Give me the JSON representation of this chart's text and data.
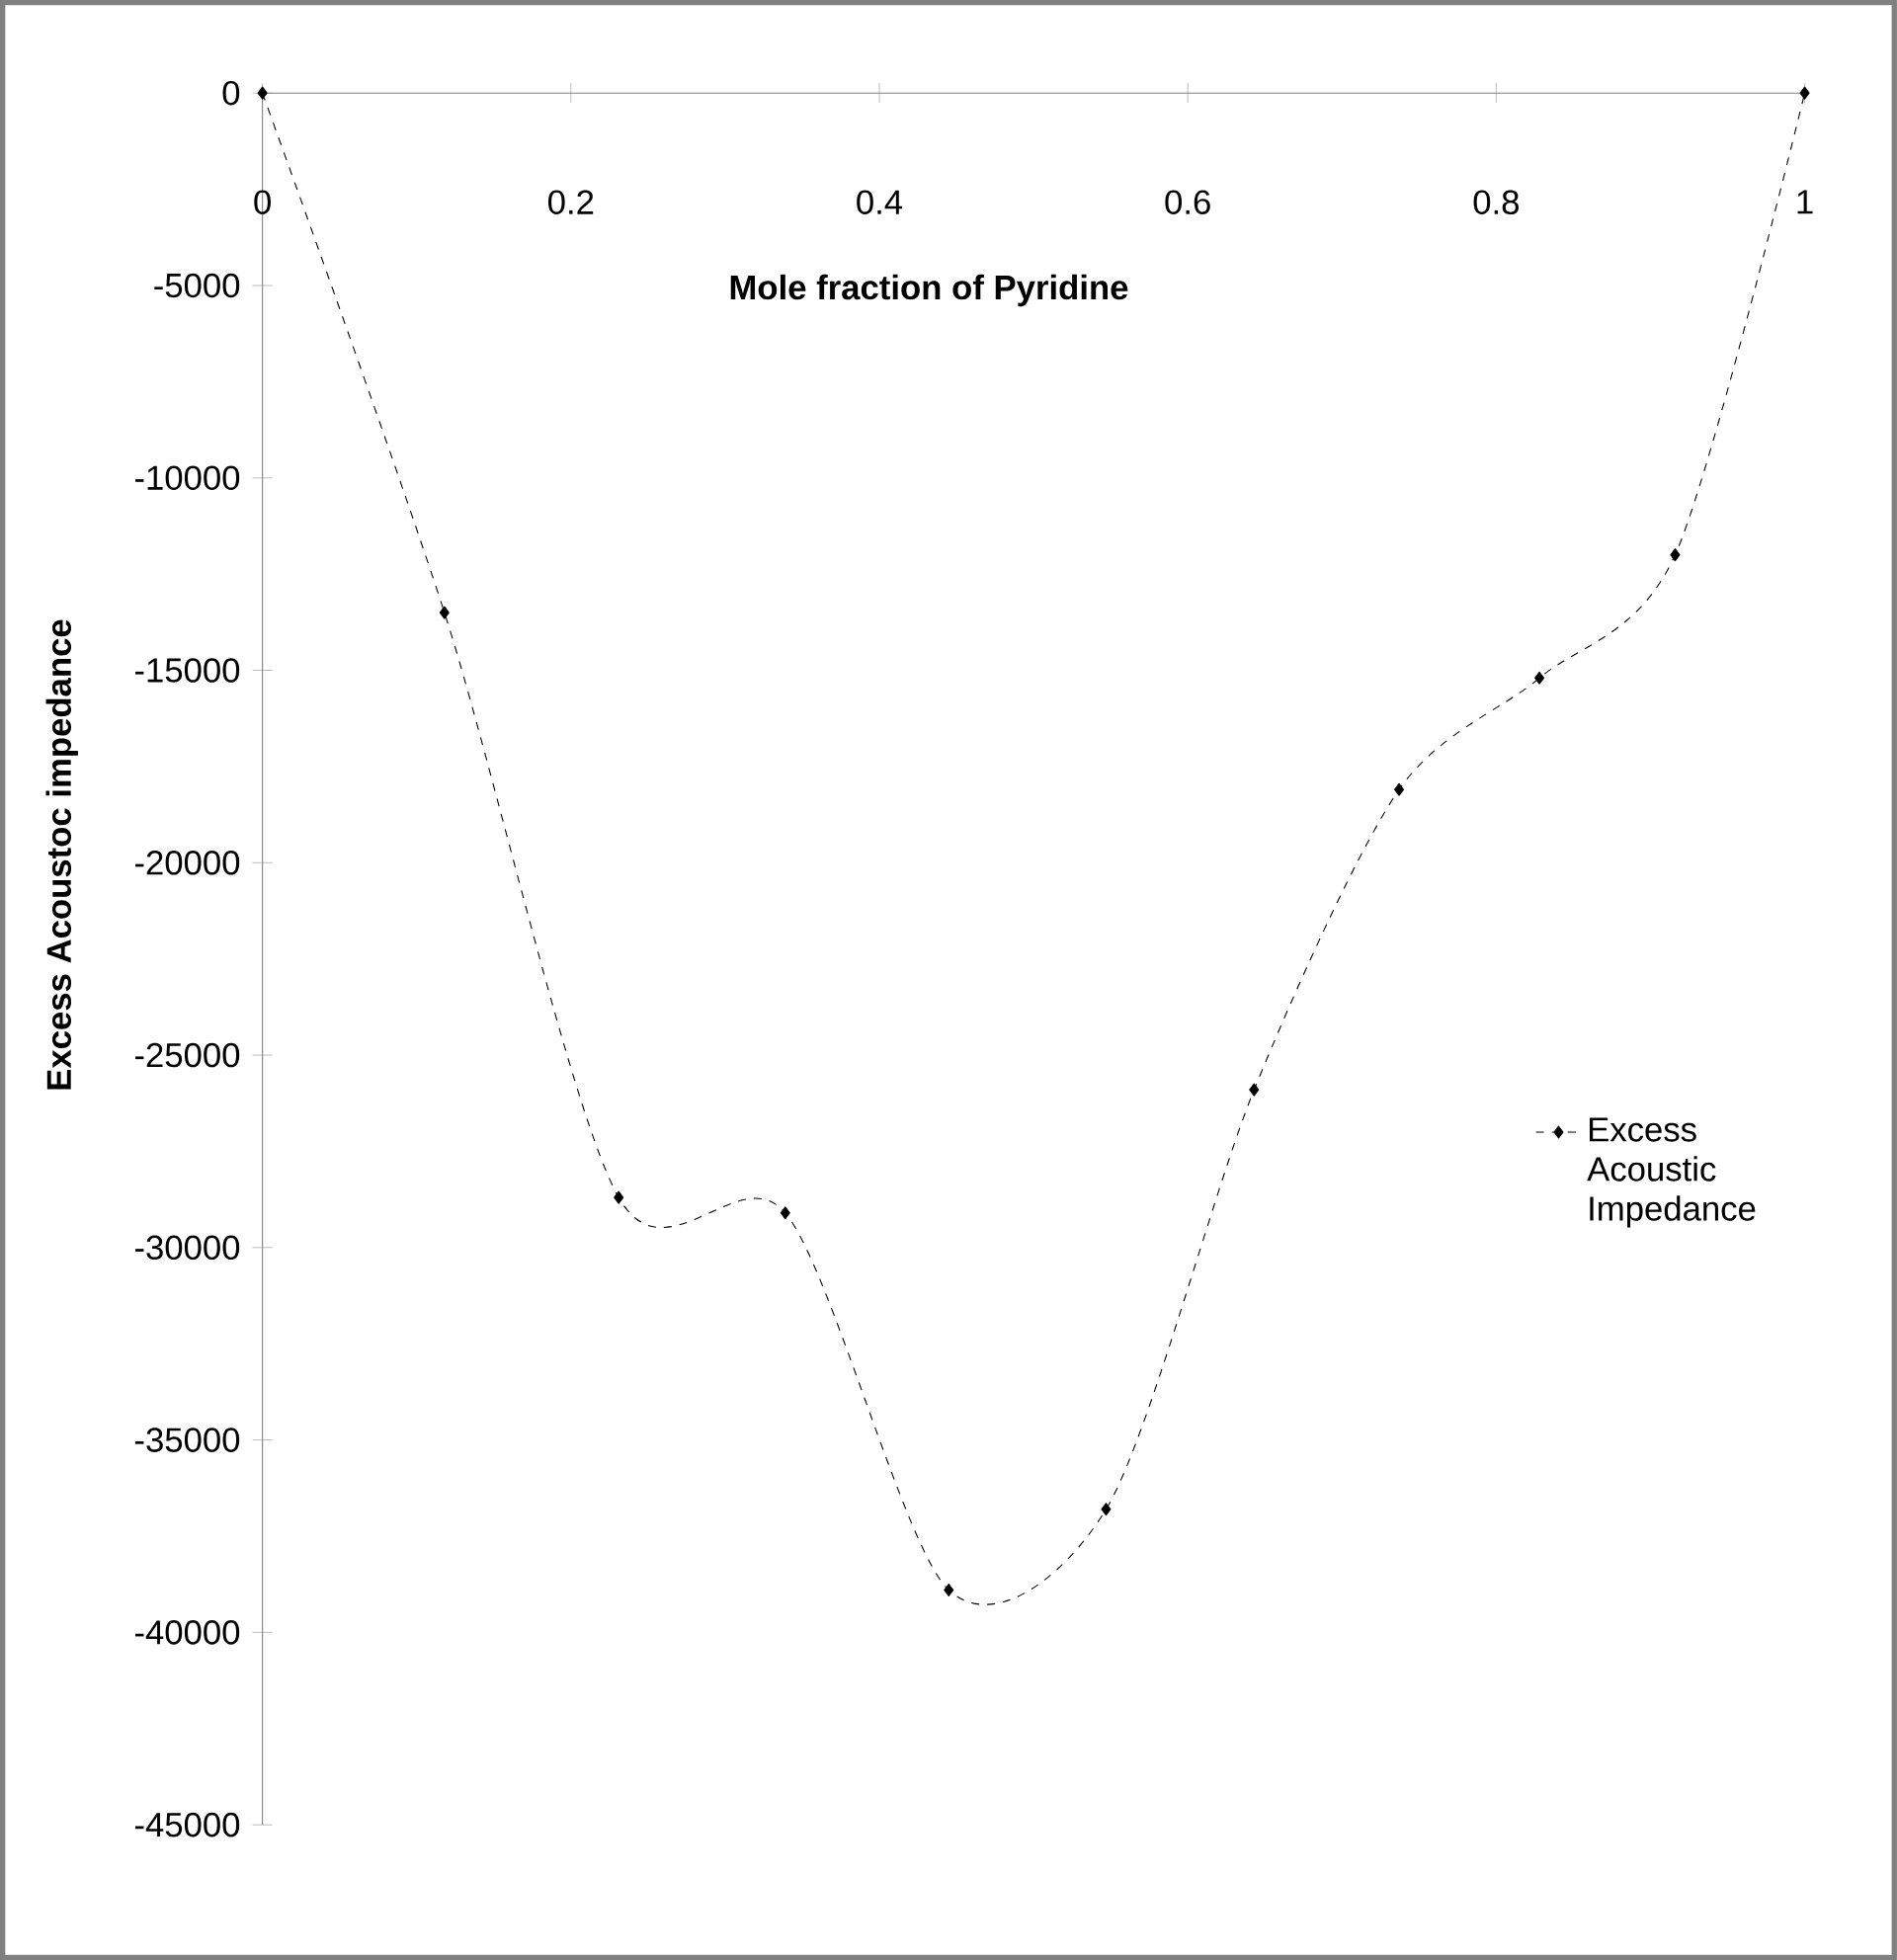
{
  "chart_data": {
    "type": "line",
    "xlabel": "Mole fraction of Pyridine",
    "ylabel": "Excess Acoustoc impedance",
    "x": [
      0,
      0.118,
      0.231,
      0.339,
      0.445,
      0.547,
      0.643,
      0.737,
      0.828,
      0.916,
      1
    ],
    "series": [
      {
        "name": "Excess Acoustic Impedance",
        "color": "#000000",
        "values": [
          0,
          -13500,
          -28700,
          -29100,
          -38900,
          -36800,
          -25900,
          -18100,
          -15200,
          -12000,
          0
        ]
      }
    ],
    "xlim": [
      0,
      1
    ],
    "ylim": [
      -45000,
      0
    ],
    "xticks": [
      0,
      0.2,
      0.4,
      0.6,
      0.8,
      1
    ],
    "yticks": [
      -45000,
      -40000,
      -35000,
      -30000,
      -25000,
      -20000,
      -15000,
      -10000,
      -5000,
      0
    ],
    "grid": false,
    "legend": "right",
    "marker": "diamond",
    "line_style": "dashed"
  }
}
